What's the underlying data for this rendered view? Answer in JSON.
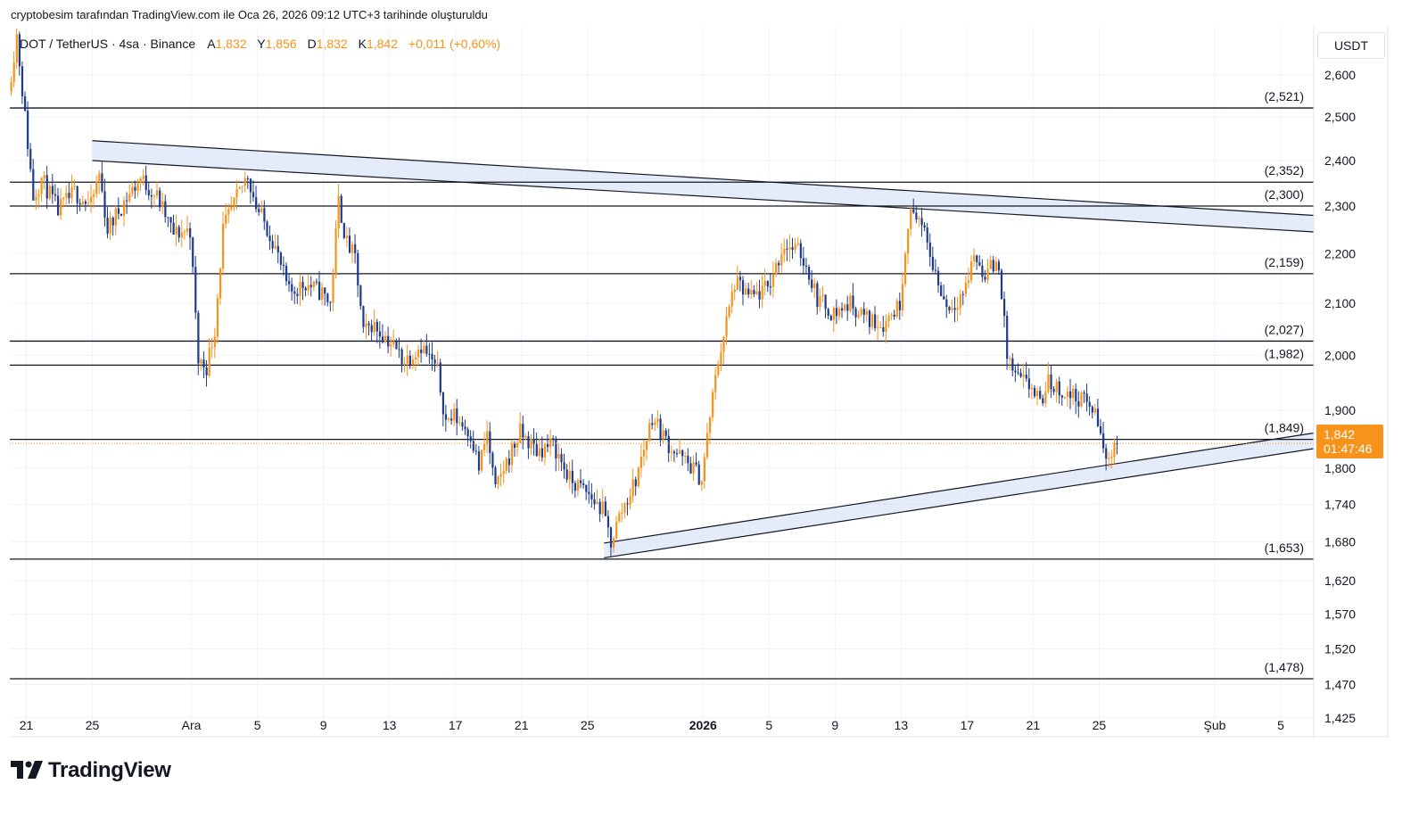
{
  "caption": "cryptobesim tarafından TradingView.com ile Oca 26, 2026 09:12 UTC+3 tarihinde oluşturuldu",
  "legend": {
    "title": "DOT / TetherUS · 4sa · Binance",
    "open_key": "A",
    "open": "1,832",
    "high_key": "Y",
    "high": "1,856",
    "low_key": "D",
    "low": "1,832",
    "close_key": "K",
    "close": "1,842",
    "change": "+0,011 (+0,60%)"
  },
  "currency": "USDT",
  "price_badge": {
    "price": "1,842",
    "countdown": "01:47:46"
  },
  "brand": {
    "name": "TradingView",
    "logo_icon": "tradingview-logo-icon"
  },
  "colors": {
    "up": "#f7931a",
    "down": "#1e3a8a",
    "channel_fill": "#dbe4f7",
    "line": "#131722",
    "accent": "#f7931a"
  },
  "chart_data": {
    "type": "candlestick",
    "symbol": "DOT / TetherUS",
    "interval": "4sa",
    "exchange": "Binance",
    "y_axis": {
      "scale": "log",
      "ticks": [
        "2,600",
        "2,500",
        "2,400",
        "2,300",
        "2,200",
        "2,100",
        "2,000",
        "1,900",
        "1,800",
        "1,740",
        "1,680",
        "1,620",
        "1,570",
        "1,520",
        "1,470",
        "1,425"
      ],
      "tick_values": [
        2.6,
        2.5,
        2.4,
        2.3,
        2.2,
        2.1,
        2.0,
        1.9,
        1.8,
        1.74,
        1.68,
        1.62,
        1.57,
        1.52,
        1.47,
        1.425
      ],
      "range": [
        1.4,
        2.72
      ]
    },
    "x_axis": {
      "range": [
        "2025-11-20",
        "2026-02-07"
      ],
      "ticks": [
        {
          "date": "2025-11-21",
          "label": "21"
        },
        {
          "date": "2025-11-25",
          "label": "25"
        },
        {
          "date": "2025-12-01",
          "label": "Ara"
        },
        {
          "date": "2025-12-05",
          "label": "5"
        },
        {
          "date": "2025-12-09",
          "label": "9"
        },
        {
          "date": "2025-12-13",
          "label": "13"
        },
        {
          "date": "2025-12-17",
          "label": "17"
        },
        {
          "date": "2025-12-21",
          "label": "21"
        },
        {
          "date": "2025-12-25",
          "label": "25"
        },
        {
          "date": "2026-01-01",
          "label": "2026",
          "bold": true
        },
        {
          "date": "2026-01-05",
          "label": "5"
        },
        {
          "date": "2026-01-09",
          "label": "9"
        },
        {
          "date": "2026-01-13",
          "label": "13"
        },
        {
          "date": "2026-01-17",
          "label": "17"
        },
        {
          "date": "2026-01-21",
          "label": "21"
        },
        {
          "date": "2026-01-25",
          "label": "25"
        },
        {
          "date": "2026-02-01",
          "label": "Şub"
        },
        {
          "date": "2026-02-05",
          "label": "5"
        }
      ]
    },
    "levels": [
      {
        "value": 2.521,
        "label": "(2,521)"
      },
      {
        "value": 2.352,
        "label": "(2,352)"
      },
      {
        "value": 2.3,
        "label": "(2,300)"
      },
      {
        "value": 2.159,
        "label": "(2,159)"
      },
      {
        "value": 2.027,
        "label": "(2,027)"
      },
      {
        "value": 1.982,
        "label": "(1,982)"
      },
      {
        "value": 1.849,
        "label": "(1,849)"
      },
      {
        "value": 1.653,
        "label": "(1,653)"
      },
      {
        "value": 1.478,
        "label": "(1,478)"
      }
    ],
    "channels": [
      {
        "name": "descending-resistance",
        "start": "2025-11-25",
        "end": "2026-02-07",
        "upper": [
          2.445,
          2.28
        ],
        "lower": [
          2.4,
          2.245
        ]
      },
      {
        "name": "ascending-support",
        "start": "2025-12-26",
        "end": "2026-02-07",
        "upper": [
          1.678,
          1.86
        ],
        "lower": [
          1.655,
          1.833
        ]
      }
    ],
    "last_price": 1.842,
    "price_path": [
      [
        "2025-11-20",
        2.56
      ],
      [
        "2025-11-20T12",
        2.7
      ],
      [
        "2025-11-21",
        2.5
      ],
      [
        "2025-11-21T12",
        2.32
      ],
      [
        "2025-11-22",
        2.36
      ],
      [
        "2025-11-23",
        2.29
      ],
      [
        "2025-11-24",
        2.33
      ],
      [
        "2025-11-25",
        2.3
      ],
      [
        "2025-11-25T12",
        2.37
      ],
      [
        "2025-11-26",
        2.25
      ],
      [
        "2025-11-27",
        2.31
      ],
      [
        "2025-11-28",
        2.36
      ],
      [
        "2025-11-29",
        2.32
      ],
      [
        "2025-11-30",
        2.24
      ],
      [
        "2025-12-01",
        2.25
      ],
      [
        "2025-12-01T12",
        1.99
      ],
      [
        "2025-12-02",
        1.98
      ],
      [
        "2025-12-02T12",
        2.05
      ],
      [
        "2025-12-03",
        2.25
      ],
      [
        "2025-12-04",
        2.33
      ],
      [
        "2025-12-04T12",
        2.37
      ],
      [
        "2025-12-05",
        2.3
      ],
      [
        "2025-12-06",
        2.23
      ],
      [
        "2025-12-07",
        2.12
      ],
      [
        "2025-12-08",
        2.14
      ],
      [
        "2025-12-09",
        2.12
      ],
      [
        "2025-12-09T12",
        2.1
      ],
      [
        "2025-12-10",
        2.31
      ],
      [
        "2025-12-10T12",
        2.22
      ],
      [
        "2025-12-11",
        2.19
      ],
      [
        "2025-12-11T12",
        2.04
      ],
      [
        "2025-12-12",
        2.06
      ],
      [
        "2025-12-13",
        2.03
      ],
      [
        "2025-12-14",
        1.99
      ],
      [
        "2025-12-15",
        2.02
      ],
      [
        "2025-12-16",
        1.97
      ],
      [
        "2025-12-16T12",
        1.88
      ],
      [
        "2025-12-17",
        1.89
      ],
      [
        "2025-12-18",
        1.86
      ],
      [
        "2025-12-18T12",
        1.8
      ],
      [
        "2025-12-19",
        1.86
      ],
      [
        "2025-12-19T12",
        1.76
      ],
      [
        "2025-12-20",
        1.8
      ],
      [
        "2025-12-21",
        1.86
      ],
      [
        "2025-12-22",
        1.83
      ],
      [
        "2025-12-23",
        1.84
      ],
      [
        "2025-12-24",
        1.78
      ],
      [
        "2025-12-25",
        1.76
      ],
      [
        "2025-12-26",
        1.73
      ],
      [
        "2025-12-26T12",
        1.68
      ],
      [
        "2025-12-27",
        1.72
      ],
      [
        "2025-12-28",
        1.78
      ],
      [
        "2025-12-29",
        1.89
      ],
      [
        "2025-12-30",
        1.84
      ],
      [
        "2025-12-31",
        1.81
      ],
      [
        "2025-12-31T12",
        1.8
      ],
      [
        "2026-01-01",
        1.78
      ],
      [
        "2026-01-01T12",
        1.89
      ],
      [
        "2026-01-02",
        1.99
      ],
      [
        "2026-01-03",
        2.14
      ],
      [
        "2026-01-04",
        2.11
      ],
      [
        "2026-01-05",
        2.13
      ],
      [
        "2026-01-06",
        2.22
      ],
      [
        "2026-01-07",
        2.2
      ],
      [
        "2026-01-07T12",
        2.16
      ],
      [
        "2026-01-08",
        2.11
      ],
      [
        "2026-01-09",
        2.08
      ],
      [
        "2026-01-10",
        2.1
      ],
      [
        "2026-01-11",
        2.07
      ],
      [
        "2026-01-12",
        2.06
      ],
      [
        "2026-01-13",
        2.1
      ],
      [
        "2026-01-13T12",
        2.27
      ],
      [
        "2026-01-14",
        2.29
      ],
      [
        "2026-01-15",
        2.18
      ],
      [
        "2026-01-15T12",
        2.12
      ],
      [
        "2026-01-16",
        2.09
      ],
      [
        "2026-01-17",
        2.13
      ],
      [
        "2026-01-17T12",
        2.2
      ],
      [
        "2026-01-18",
        2.16
      ],
      [
        "2026-01-19",
        2.18
      ],
      [
        "2026-01-19T12",
        2.0
      ],
      [
        "2026-01-20",
        1.96
      ],
      [
        "2026-01-21",
        1.94
      ],
      [
        "2026-01-21T12",
        1.91
      ],
      [
        "2026-01-22",
        1.95
      ],
      [
        "2026-01-23",
        1.93
      ],
      [
        "2026-01-24",
        1.92
      ],
      [
        "2026-01-24T12",
        1.91
      ],
      [
        "2026-01-25",
        1.88
      ],
      [
        "2026-01-25T12",
        1.81
      ],
      [
        "2026-01-26",
        1.842
      ]
    ]
  }
}
